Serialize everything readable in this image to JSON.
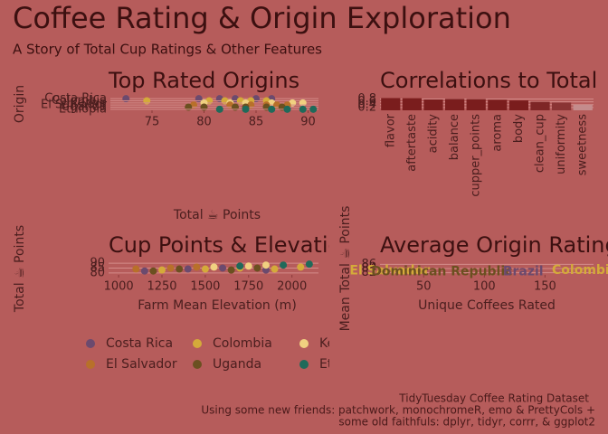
{
  "header": {
    "title": "Coffee Rating & Origin Exploration",
    "subtitle": "A Story of Total Cup Ratings & Other Features"
  },
  "chart_data": [
    {
      "type": "dotplot",
      "title": "Top Rated Origins",
      "x_label": "Total ☕ Points",
      "y_label": "Origin",
      "categories": [
        "Costa Rica",
        "Colombia",
        "Kenya",
        "El Salvador",
        "Uganda",
        "Ethiopia"
      ],
      "colors": [
        "#6b4a6e",
        "#d4aa3a",
        "#f0d080",
        "#b8702a",
        "#6b5020",
        "#1f6a5a"
      ],
      "values": [
        [
          72.5,
          79.5,
          81.5,
          83.0,
          85.0,
          86.5
        ],
        [
          74.5,
          80.5,
          82.0,
          83.5,
          84.5,
          86.0
        ],
        [
          80.0,
          82.5,
          84.0,
          86.5,
          88.5,
          89.5
        ],
        [
          79.0,
          82.5,
          84.5,
          86.0,
          87.0,
          88.0
        ],
        [
          78.5,
          80.0,
          83.0,
          84.0,
          86.0,
          87.5
        ],
        [
          81.5,
          84.0,
          86.5,
          88.0,
          89.5,
          90.5
        ]
      ],
      "xlim": [
        71,
        91
      ],
      "xticks": [
        75,
        80,
        85,
        90
      ],
      "grid": true
    },
    {
      "type": "bar",
      "title": "Correlations to Total",
      "categories": [
        "flavor",
        "aftertaste",
        "acidity",
        "balance",
        "cupper_points",
        "aroma",
        "body",
        "clean_cup",
        "uniformity",
        "sweetness"
      ],
      "values": [
        0.87,
        0.86,
        0.77,
        0.81,
        0.8,
        0.75,
        0.7,
        0.6,
        0.55,
        0.4
      ],
      "colors": [
        "#7a1d1d",
        "#7a1d1d",
        "#7a1d1d",
        "#7a1d1d",
        "#7a1d1d",
        "#7a1d1d",
        "#7a1d1d",
        "#7e2626",
        "#8a3434",
        "#c48c8c"
      ],
      "ylim": [
        0,
        0.9
      ],
      "yticks": [
        0.2,
        0.4,
        0.6,
        0.8
      ],
      "grid": true
    },
    {
      "type": "scatter",
      "title": "Cup Points & Elevation",
      "x_label": "Farm Mean Elevation (m)",
      "y_label": "Total ☕ Points",
      "series": [
        {
          "name": "Costa Rica",
          "color": "#6b4a6e",
          "x": [
            1150,
            1400,
            1600,
            1850
          ],
          "values": [
            82,
            84,
            85,
            83
          ]
        },
        {
          "name": "Colombia",
          "color": "#d4aa3a",
          "x": [
            1250,
            1500,
            1700,
            1900,
            2050
          ],
          "values": [
            83,
            84,
            85,
            84,
            86
          ]
        },
        {
          "name": "Kenya",
          "color": "#f0d080",
          "x": [
            1550,
            1750,
            1850
          ],
          "values": [
            86,
            87,
            88
          ]
        },
        {
          "name": "El Salvador",
          "color": "#b8702a",
          "x": [
            1100,
            1300,
            1450
          ],
          "values": [
            84,
            85,
            86
          ]
        },
        {
          "name": "Uganda",
          "color": "#6b5020",
          "x": [
            1200,
            1350,
            1650,
            1800
          ],
          "values": [
            82,
            84,
            83,
            85
          ]
        },
        {
          "name": "Ethiopia",
          "color": "#1f6a5a",
          "x": [
            1700,
            1950,
            2100
          ],
          "values": [
            87,
            88,
            89
          ]
        }
      ],
      "xlim": [
        942,
        2153
      ],
      "xticks": [
        1000,
        1250,
        1500,
        1750,
        2000
      ],
      "ylim": [
        78,
        91
      ],
      "yticks": [
        80,
        85,
        90
      ],
      "grid": true
    },
    {
      "type": "label-scatter",
      "title": "Average Origin Rating",
      "x_label": "Unique Coffees Rated",
      "y_label": "Mean Total ☕ Points",
      "categories": [
        "El Salvador",
        "Dominican Republic",
        "Brazil",
        "Colombia"
      ],
      "x": [
        22,
        65,
        132,
        183
      ],
      "values": [
        83.0,
        82.5,
        82.4,
        83.1
      ],
      "colors": [
        "#d4aa3a",
        "#6b5020",
        "#6b4a6e",
        "#d4aa3a"
      ],
      "xlim": [
        14,
        190
      ],
      "xticks": [
        50,
        100,
        150
      ],
      "ylim": [
        81,
        87
      ],
      "yticks": [
        82,
        84,
        86
      ],
      "grid": true
    }
  ],
  "caption": [
    "TidyTuesday Coffee Rating Dataset",
    "Using some new friends: patchwork, monochromeR, emo & PrettyCols +",
    "some old faithfuls: dplyr, tidyr, corrr, & ggplot2"
  ]
}
